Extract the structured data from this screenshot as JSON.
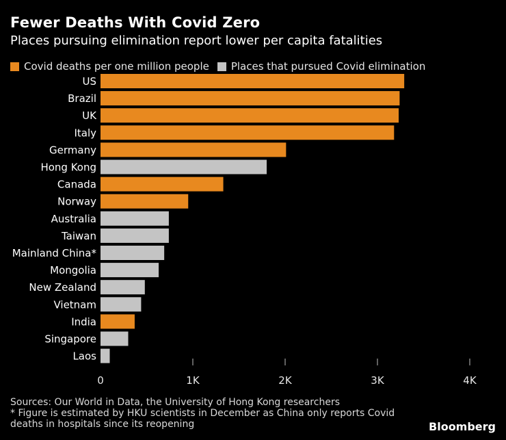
{
  "header": {
    "title": "Fewer Deaths With Covid Zero",
    "subtitle": "Places pursuing elimination report lower per capita fatalities"
  },
  "legend": [
    {
      "label": "Covid deaths per one million people",
      "color": "#e8891f"
    },
    {
      "label": "Places that pursued Covid elimination",
      "color": "#c4c4c4"
    }
  ],
  "chart_data": {
    "type": "bar",
    "orientation": "horizontal",
    "title": "Fewer Deaths With Covid Zero",
    "subtitle": "Places pursuing elimination report lower per capita fatalities",
    "xlabel": "",
    "ylabel": "",
    "xlim": [
      0,
      4000
    ],
    "xticks": [
      {
        "value": 0,
        "label": "0"
      },
      {
        "value": 1000,
        "label": "1K"
      },
      {
        "value": 2000,
        "label": "2K"
      },
      {
        "value": 3000,
        "label": "3K"
      },
      {
        "value": 4000,
        "label": "4K"
      }
    ],
    "categories": [
      "US",
      "Brazil",
      "UK",
      "Italy",
      "Germany",
      "Hong Kong",
      "Canada",
      "Norway",
      "Australia",
      "Taiwan",
      "Mainland China*",
      "Mongolia",
      "New Zealand",
      "Vietnam",
      "India",
      "Singapore",
      "Laos"
    ],
    "values": [
      3290,
      3240,
      3230,
      3180,
      2010,
      1800,
      1330,
      950,
      740,
      740,
      690,
      630,
      480,
      440,
      370,
      300,
      100
    ],
    "group": [
      "deaths",
      "deaths",
      "deaths",
      "deaths",
      "deaths",
      "elimination",
      "deaths",
      "deaths",
      "elimination",
      "elimination",
      "elimination",
      "elimination",
      "elimination",
      "elimination",
      "deaths",
      "elimination",
      "elimination"
    ],
    "colors": {
      "deaths": "#e8891f",
      "elimination": "#c4c4c4"
    },
    "grid": false,
    "legend_position": "top-left"
  },
  "footnote": {
    "sources": "Sources: Our World in Data, the University of Hong Kong researchers",
    "note_line1": "* Figure is estimated by HKU scientists in December as China only reports Covid",
    "note_line2": "deaths in hospitals since its reopening"
  },
  "brand": "Bloomberg"
}
